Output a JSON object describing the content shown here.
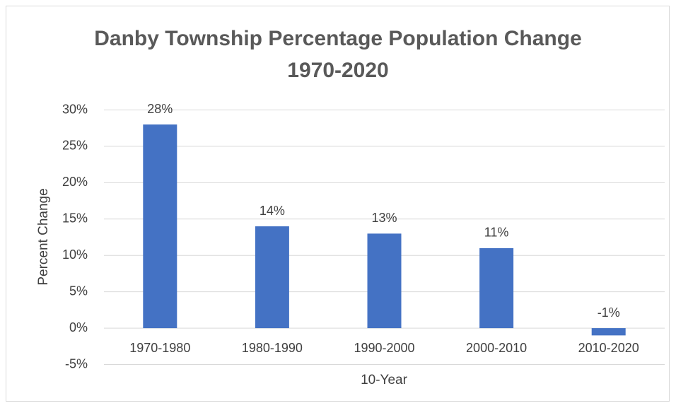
{
  "chart_data": {
    "type": "bar",
    "title": [
      "Danby Township Percentage Population Change",
      "1970-2020"
    ],
    "x_label": "10-Year",
    "y_label": "Percent Change",
    "categories": [
      "1970-1980",
      "1980-1990",
      "1990-2000",
      "2000-2010",
      "2010-2020"
    ],
    "values": [
      28,
      14,
      13,
      11,
      -1
    ],
    "value_labels": [
      "28%",
      "14%",
      "13%",
      "11%",
      "-1%"
    ],
    "color": "#4472c4",
    "ylim": [
      -5,
      30
    ],
    "yticks": [
      {
        "value": -5,
        "label": "-5%"
      },
      {
        "value": 0,
        "label": "0%"
      },
      {
        "value": 5,
        "label": "5%"
      },
      {
        "value": 10,
        "label": "10%"
      },
      {
        "value": 15,
        "label": "15%"
      },
      {
        "value": 20,
        "label": "20%"
      },
      {
        "value": 25,
        "label": "25%"
      },
      {
        "value": 30,
        "label": "30%"
      }
    ],
    "grid": true
  }
}
